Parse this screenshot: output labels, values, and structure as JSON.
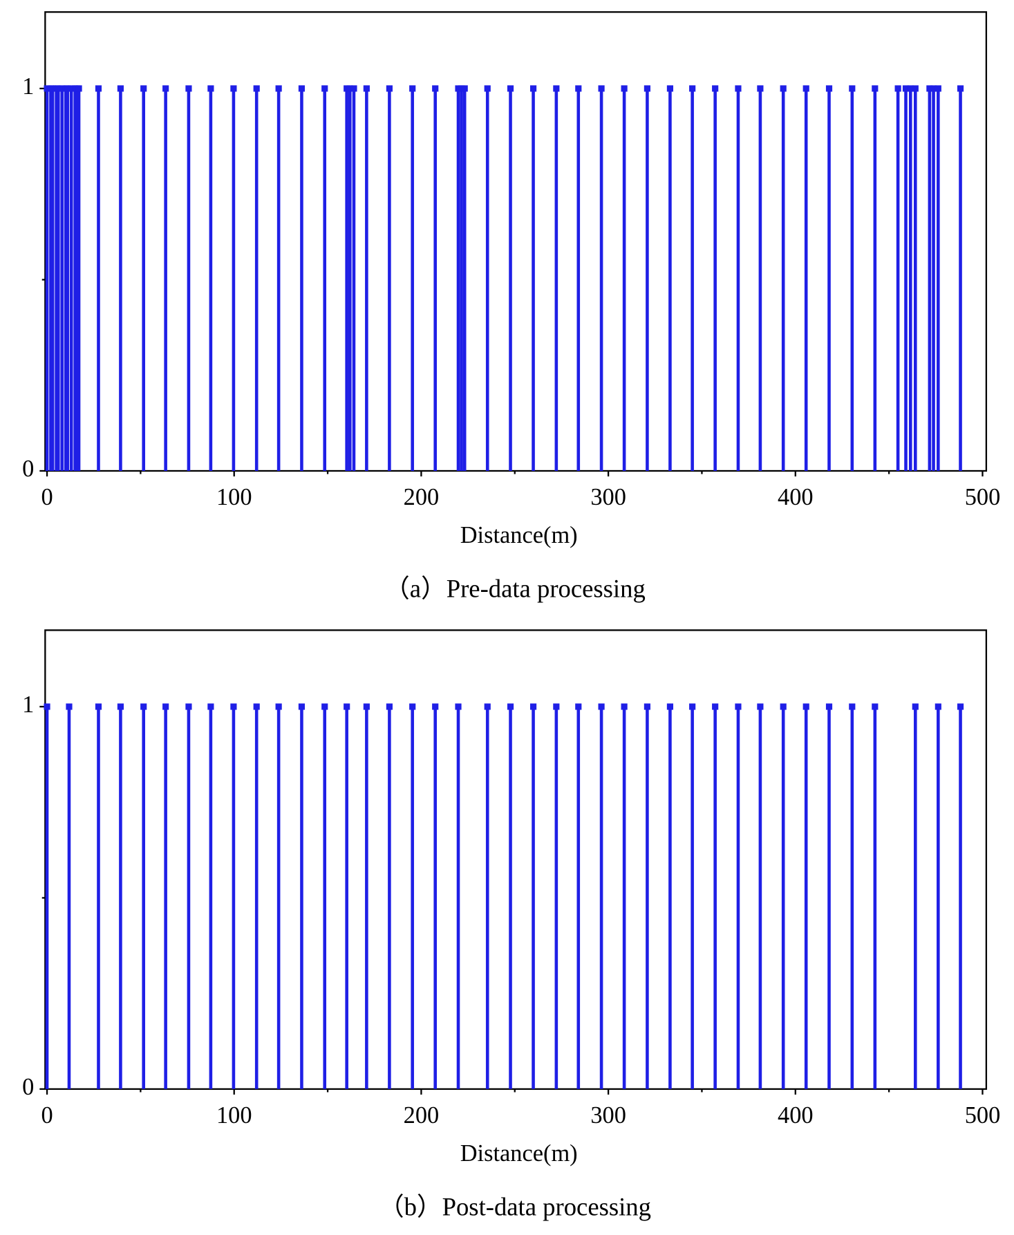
{
  "chart_data": [
    {
      "type": "stem",
      "caption": "（a）Pre-data processing",
      "x_label": "Distance(m)",
      "color": "#1f1fe6",
      "x": [
        0,
        2,
        3,
        5,
        6,
        8,
        10,
        11,
        13,
        15,
        16,
        17,
        27.5,
        39.3,
        51.6,
        63.4,
        75.7,
        87.5,
        99.7,
        112,
        123.8,
        136.1,
        148.4,
        160.2,
        161.9,
        164,
        170.8,
        183,
        195.3,
        207.5,
        219.8,
        221.5,
        223.2,
        235.4,
        247.7,
        259.9,
        272.2,
        284,
        296.3,
        308.5,
        320.8,
        333,
        344.9,
        357.1,
        369.4,
        381.2,
        393.5,
        405.7,
        418,
        430.3,
        442.5,
        454.8,
        459,
        461.5,
        464.1,
        471.7,
        473.8,
        476.3,
        488.2
      ],
      "values": [
        1,
        1,
        1,
        1,
        1,
        1,
        1,
        1,
        1,
        1,
        1,
        1,
        1,
        1,
        1,
        1,
        1,
        1,
        1,
        1,
        1,
        1,
        1,
        1,
        1,
        1,
        1,
        1,
        1,
        1,
        1,
        1,
        1,
        1,
        1,
        1,
        1,
        1,
        1,
        1,
        1,
        1,
        1,
        1,
        1,
        1,
        1,
        1,
        1,
        1,
        1,
        1,
        1,
        1,
        1,
        1,
        1,
        1,
        1
      ],
      "xlim": [
        -1,
        502
      ],
      "ylim": [
        0,
        1.2
      ],
      "xticks": [
        0,
        100,
        200,
        300,
        400,
        500
      ],
      "minor_xticks": [
        50,
        150,
        250,
        350,
        450
      ],
      "yticks": [
        0,
        1
      ],
      "minor_yticks": [
        0.5
      ]
    },
    {
      "type": "stem",
      "caption": "（b）Post-data processing",
      "x_label": "Distance(m)",
      "color": "#1f1fe6",
      "x": [
        0,
        11.8,
        27.5,
        39.3,
        51.6,
        63.4,
        75.7,
        87.5,
        99.7,
        112,
        123.8,
        136.1,
        148.4,
        160.2,
        170.8,
        183,
        195.3,
        207.5,
        219.8,
        235.4,
        247.7,
        259.9,
        272.2,
        284,
        296.3,
        308.5,
        320.8,
        333,
        344.9,
        357.1,
        369.4,
        381.2,
        393.5,
        405.7,
        418,
        430.3,
        442.5,
        464.1,
        476.3,
        488.2
      ],
      "values": [
        1,
        1,
        1,
        1,
        1,
        1,
        1,
        1,
        1,
        1,
        1,
        1,
        1,
        1,
        1,
        1,
        1,
        1,
        1,
        1,
        1,
        1,
        1,
        1,
        1,
        1,
        1,
        1,
        1,
        1,
        1,
        1,
        1,
        1,
        1,
        1,
        1,
        1,
        1,
        1
      ],
      "xlim": [
        -1,
        502
      ],
      "ylim": [
        0,
        1.2
      ],
      "xticks": [
        0,
        100,
        200,
        300,
        400,
        500
      ],
      "minor_xticks": [
        50,
        150,
        250,
        350,
        450
      ],
      "yticks": [
        0,
        1
      ],
      "minor_yticks": [
        0.5
      ]
    }
  ]
}
